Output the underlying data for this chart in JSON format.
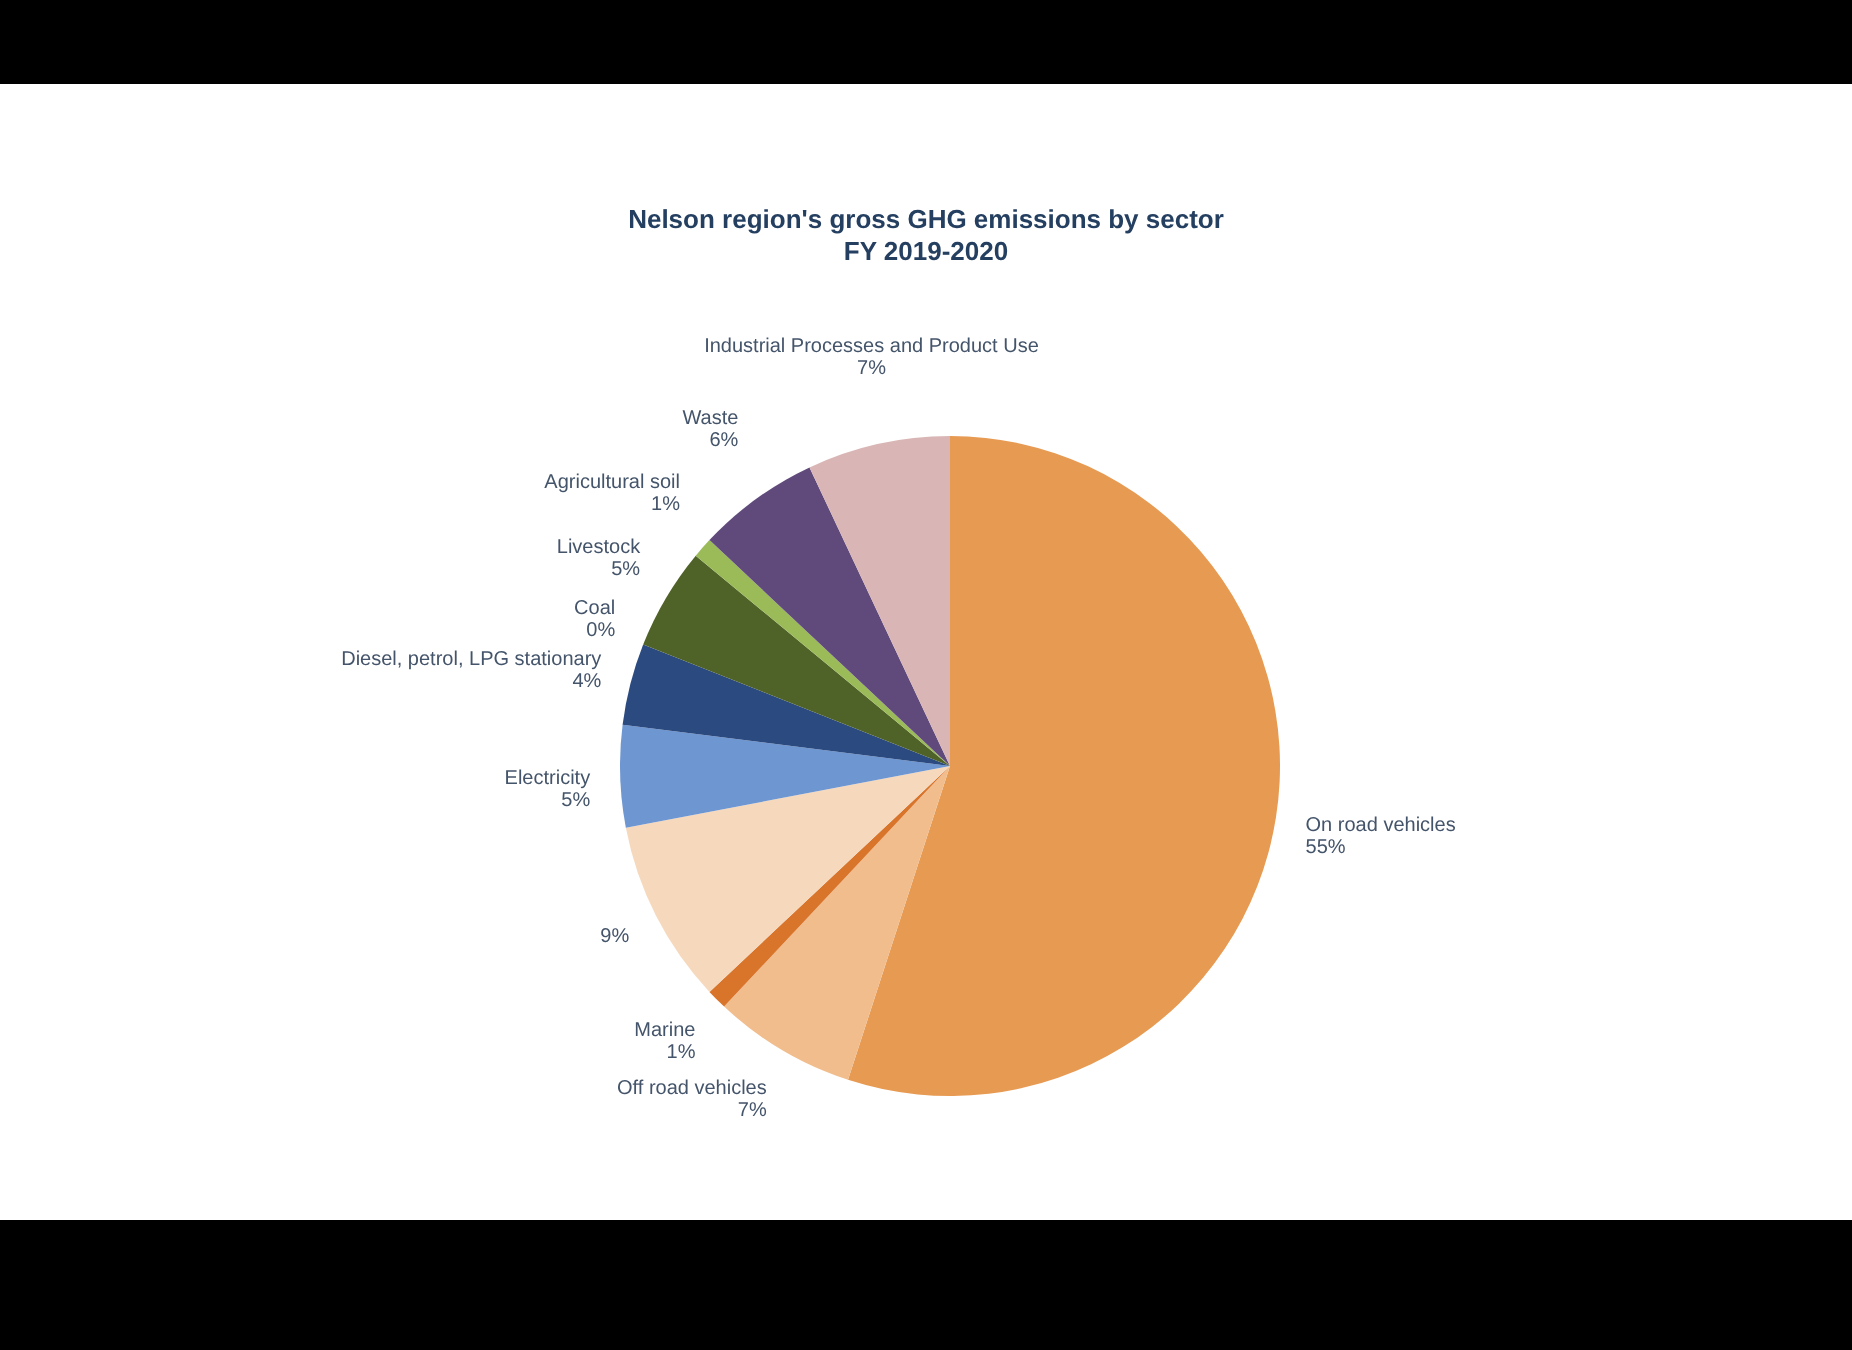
{
  "chart_data": {
    "type": "pie",
    "title": "Nelson region's gross GHG emissions by sector",
    "subtitle": "FY 2019-2020",
    "categories": [
      "On road vehicles",
      "Off road vehicles",
      "Marine",
      null,
      "Electricity",
      "Diesel, petrol, LPG stationary",
      "Coal",
      "Livestock",
      "Agricultural soil",
      "Waste",
      "Industrial Processes and Product Use"
    ],
    "values": [
      55,
      7,
      1,
      9,
      5,
      4,
      0,
      5,
      1,
      6,
      7
    ],
    "value_labels": [
      "55%",
      "7%",
      "1%",
      "9%",
      "5%",
      "4%",
      "0%",
      "5%",
      "1%",
      "6%",
      "7%"
    ],
    "colors": [
      "#e79a52",
      "#f1bd8d",
      "#d9742b",
      "#f6d9bd",
      "#6e96d1",
      "#2b4a80",
      "#3f3f3f",
      "#4f6228",
      "#9bbb59",
      "#604a7b",
      "#d9b6b5"
    ],
    "legend": false
  }
}
